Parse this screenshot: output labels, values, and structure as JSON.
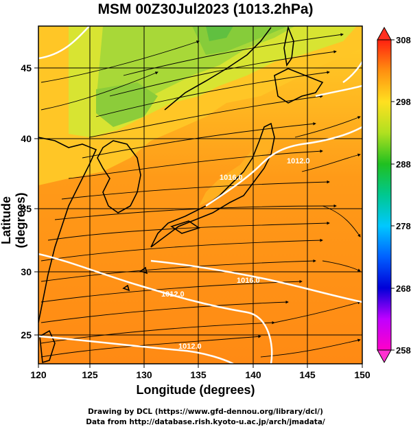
{
  "title": "MSM 00Z30Jul2023 (1013.2hPa)",
  "x_axis": {
    "label": "Longitude (degrees)",
    "ticks": [
      "120",
      "125",
      "130",
      "135",
      "140",
      "145",
      "150"
    ]
  },
  "y_axis": {
    "label": "Latitude  (degrees)",
    "ticks": [
      "25",
      "30",
      "35",
      "40",
      "45"
    ]
  },
  "colorbar": {
    "ticks": [
      "308",
      "298",
      "288",
      "278",
      "268",
      "258"
    ]
  },
  "contour_labels": [
    "1012.0",
    "1016.0",
    "1012.0",
    "1016.0",
    "1012.0"
  ],
  "credits": [
    "Drawing by DCL (https://www.gfd-dennou.org/library/dcl/)",
    "Data from http://database.rish.kyoto-u.ac.jp/arch/jmadata/"
  ],
  "chart_data": {
    "type": "heatmap",
    "title": "MSM 00Z30Jul2023 (1013.2hPa)",
    "xlabel": "Longitude (degrees)",
    "ylabel": "Latitude  (degrees)",
    "xlim": [
      120,
      150
    ],
    "ylim": [
      22.4,
      47.6
    ],
    "colorbar_range": [
      258,
      308
    ],
    "colorbar_ticks": [
      308,
      298,
      288,
      278,
      268,
      258
    ],
    "grid": true,
    "overlays": [
      "streamlines",
      "isobars"
    ],
    "isobar_labels": [
      "1012.0",
      "1016.0",
      "1012.0",
      "1016.0",
      "1012.0"
    ],
    "colors": {
      "warm": "#ff8a14",
      "mid": "#ffb81e",
      "cool": "#b4e03c",
      "land_green": "#7cc83a",
      "isobar": "#ffffff"
    }
  }
}
